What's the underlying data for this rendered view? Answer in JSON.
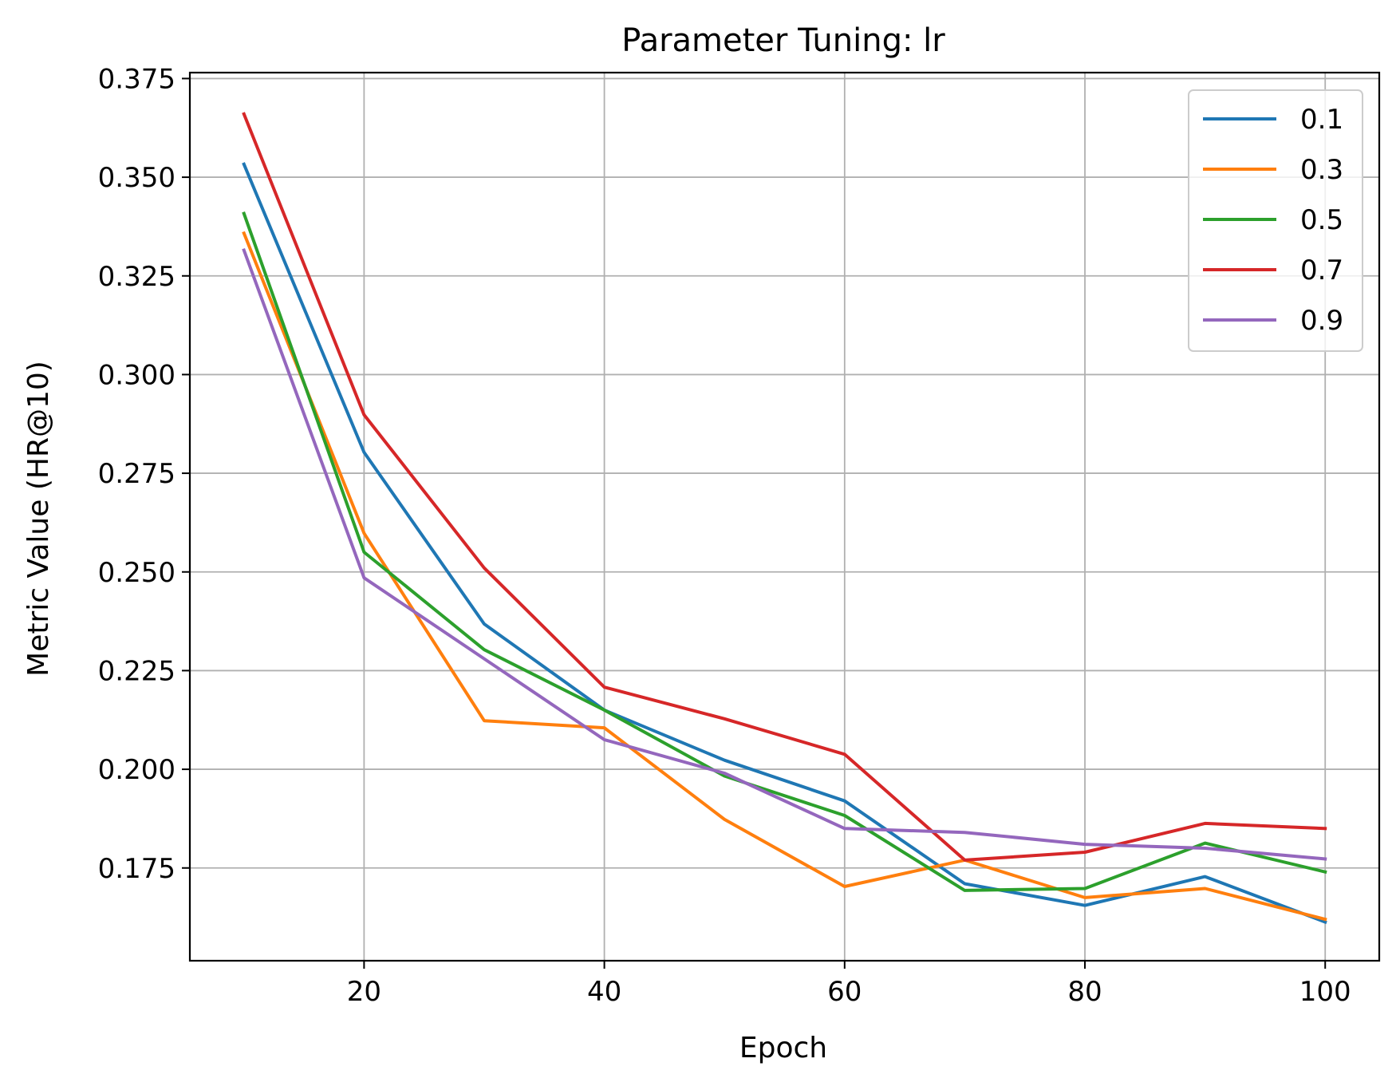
{
  "chart_data": {
    "type": "line",
    "title": "Parameter Tuning: lr",
    "xlabel": "Epoch",
    "ylabel": "Metric Value (HR@10)",
    "x": [
      10,
      20,
      30,
      40,
      50,
      60,
      70,
      80,
      90,
      100
    ],
    "xlim": [
      5.5,
      104.5
    ],
    "ylim": [
      0.1515,
      0.3765
    ],
    "xticks": [
      20,
      40,
      60,
      80,
      100
    ],
    "yticks": [
      0.175,
      0.2,
      0.225,
      0.25,
      0.275,
      0.3,
      0.325,
      0.35,
      0.375
    ],
    "xtick_labels": [
      "20",
      "40",
      "60",
      "80",
      "100"
    ],
    "ytick_labels": [
      "0.175",
      "0.200",
      "0.225",
      "0.250",
      "0.275",
      "0.300",
      "0.325",
      "0.350",
      "0.375"
    ],
    "grid": true,
    "legend_position": "top-right",
    "series": [
      {
        "name": "0.1",
        "color": "#1f77b4",
        "values": [
          0.3533,
          0.2803,
          0.2368,
          0.215,
          0.2023,
          0.192,
          0.171,
          0.1655,
          0.1728,
          0.1613
        ]
      },
      {
        "name": "0.3",
        "color": "#ff7f0e",
        "values": [
          0.3358,
          0.2598,
          0.2123,
          0.2105,
          0.1873,
          0.1703,
          0.177,
          0.1675,
          0.1698,
          0.162
        ]
      },
      {
        "name": "0.5",
        "color": "#2ca02c",
        "values": [
          0.3408,
          0.255,
          0.2303,
          0.215,
          0.1983,
          0.1883,
          0.1693,
          0.1698,
          0.1813,
          0.174
        ]
      },
      {
        "name": "0.7",
        "color": "#d62728",
        "values": [
          0.366,
          0.2898,
          0.251,
          0.2208,
          0.2128,
          0.2038,
          0.177,
          0.179,
          0.1863,
          0.185
        ]
      },
      {
        "name": "0.9",
        "color": "#9467bd",
        "values": [
          0.3315,
          0.2485,
          0.228,
          0.2075,
          0.199,
          0.185,
          0.184,
          0.181,
          0.18,
          0.1773
        ]
      }
    ]
  }
}
